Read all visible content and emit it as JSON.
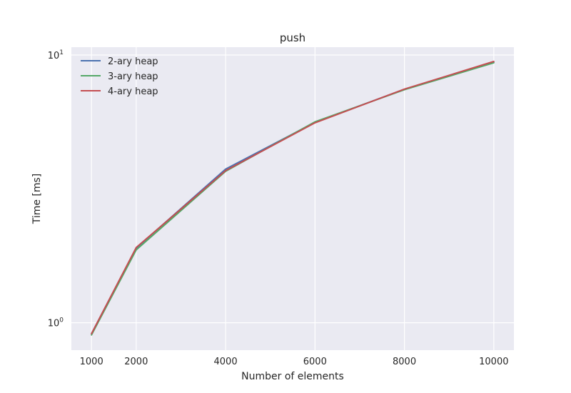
{
  "chart_data": {
    "type": "line",
    "title": "push",
    "xlabel": "Number of elements",
    "ylabel": "Time [ms]",
    "x": [
      1000,
      2000,
      4000,
      6000,
      8000,
      10000
    ],
    "xlim": [
      550,
      10450
    ],
    "ylim": [
      0.79,
      10.7
    ],
    "yscale": "log",
    "grid": true,
    "legend_position": "upper-left",
    "x_ticks": [
      {
        "value": 1000,
        "label": "1000"
      },
      {
        "value": 2000,
        "label": "2000"
      },
      {
        "value": 4000,
        "label": "4000"
      },
      {
        "value": 6000,
        "label": "6000"
      },
      {
        "value": 8000,
        "label": "8000"
      },
      {
        "value": 10000,
        "label": "10000"
      }
    ],
    "y_ticks": [
      {
        "value": 1,
        "base": "10",
        "exp": "0"
      },
      {
        "value": 10,
        "base": "10",
        "exp": "1"
      }
    ],
    "series": [
      {
        "name": "2-ary heap",
        "color": "#4c72b0",
        "values": [
          0.91,
          1.9,
          3.75,
          5.6,
          7.45,
          9.4
        ]
      },
      {
        "name": "3-ary heap",
        "color": "#55a868",
        "values": [
          0.9,
          1.87,
          3.68,
          5.63,
          7.42,
          9.35
        ]
      },
      {
        "name": "4-ary heap",
        "color": "#c44e52",
        "values": [
          0.91,
          1.91,
          3.7,
          5.58,
          7.46,
          9.46
        ]
      }
    ]
  }
}
